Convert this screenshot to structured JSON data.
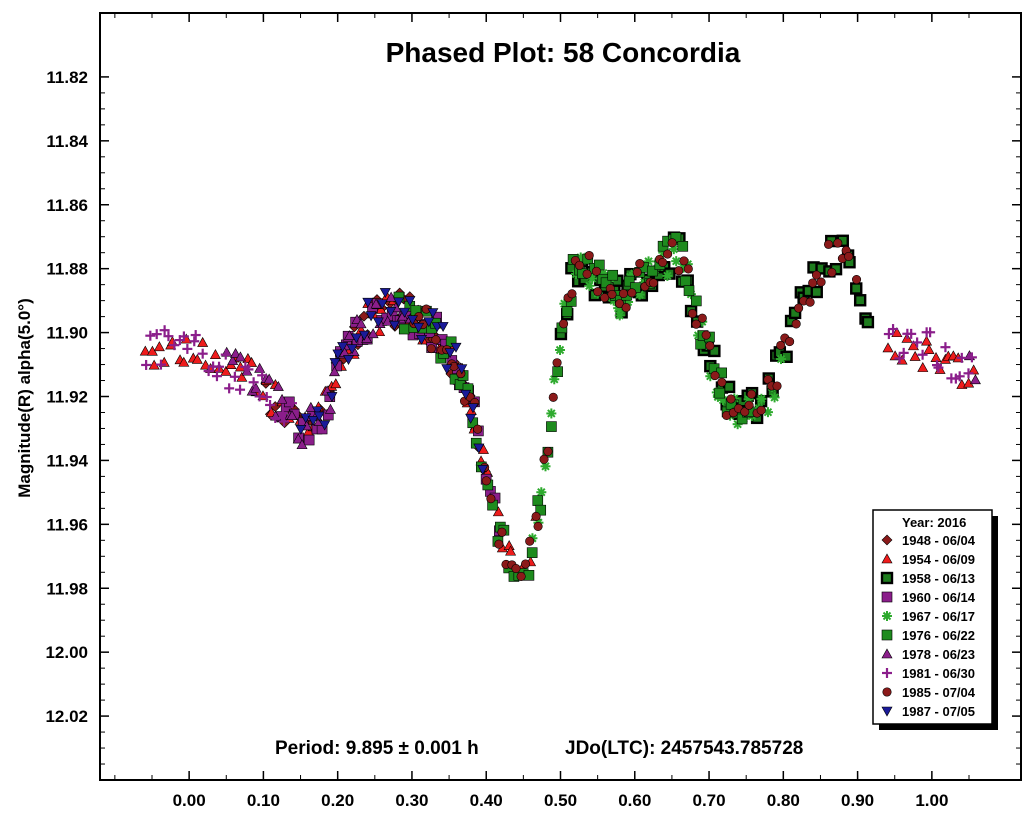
{
  "chart_data": {
    "type": "scatter",
    "title": "Phased Plot: 58 Concordia",
    "xlabel": "",
    "ylabel": "Magnitude(R) alpha(5.0°)",
    "xlim": [
      -0.12,
      1.12
    ],
    "ylim": [
      11.8,
      12.04
    ],
    "y_inverted": true,
    "x_ticks": [
      "0.00",
      "0.10",
      "0.20",
      "0.30",
      "0.40",
      "0.50",
      "0.60",
      "0.70",
      "0.80",
      "0.90",
      "1.00"
    ],
    "y_ticks": [
      "11.82",
      "11.84",
      "11.86",
      "11.88",
      "11.90",
      "11.92",
      "11.94",
      "11.96",
      "11.98",
      "12.00",
      "12.02"
    ],
    "grid": false,
    "legend_position": "bottom-right",
    "legend_title": "Year: 2016",
    "period_text": "Period: 9.895 ± 0.001 h",
    "epoch_text": "JDo(LTC): 2457543.785728",
    "lightcurve": [
      [
        0.0,
        11.905
      ],
      [
        0.05,
        11.912
      ],
      [
        0.08,
        11.913
      ],
      [
        0.12,
        11.922
      ],
      [
        0.15,
        11.93
      ],
      [
        0.18,
        11.925
      ],
      [
        0.2,
        11.912
      ],
      [
        0.23,
        11.898
      ],
      [
        0.27,
        11.892
      ],
      [
        0.3,
        11.895
      ],
      [
        0.33,
        11.9
      ],
      [
        0.36,
        11.91
      ],
      [
        0.38,
        11.922
      ],
      [
        0.4,
        11.945
      ],
      [
        0.42,
        11.965
      ],
      [
        0.44,
        11.975
      ],
      [
        0.46,
        11.97
      ],
      [
        0.48,
        11.94
      ],
      [
        0.5,
        11.9
      ],
      [
        0.52,
        11.88
      ],
      [
        0.55,
        11.883
      ],
      [
        0.58,
        11.89
      ],
      [
        0.62,
        11.88
      ],
      [
        0.66,
        11.875
      ],
      [
        0.69,
        11.9
      ],
      [
        0.72,
        11.92
      ],
      [
        0.75,
        11.925
      ],
      [
        0.78,
        11.92
      ],
      [
        0.81,
        11.9
      ],
      [
        0.85,
        11.88
      ],
      [
        0.88,
        11.873
      ],
      [
        0.91,
        11.895
      ],
      [
        0.95,
        11.905
      ],
      [
        1.0,
        11.905
      ],
      [
        1.05,
        11.912
      ]
    ],
    "series": [
      {
        "name": "1948 - 06/04",
        "marker": "diamond",
        "color": "#8b1a1a",
        "range": [
          0.1,
          0.4
        ]
      },
      {
        "name": "1954 - 06/09",
        "marker": "triangle-up",
        "color": "#ee1c1c",
        "range": [
          -0.06,
          0.47
        ]
      },
      {
        "name": "1958 - 06/13",
        "marker": "square-outline",
        "color": "#1e7d1e",
        "range": [
          0.5,
          0.92
        ]
      },
      {
        "name": "1960 - 06/14",
        "marker": "square",
        "color": "#8b1e8b",
        "range": [
          0.12,
          0.42
        ]
      },
      {
        "name": "1967 - 06/17",
        "marker": "asterisk",
        "color": "#2eaa2e",
        "range": [
          0.46,
          0.8
        ]
      },
      {
        "name": "1976 - 06/22",
        "marker": "square",
        "color": "#1e8b1e",
        "range": [
          0.28,
          0.76
        ]
      },
      {
        "name": "1978 - 06/23",
        "marker": "triangle-up",
        "color": "#8b1e8b",
        "range": [
          0.05,
          0.3
        ]
      },
      {
        "name": "1981 - 06/30",
        "marker": "plus",
        "color": "#8b1e8b",
        "range": [
          -0.06,
          0.14
        ]
      },
      {
        "name": "1985 - 07/04",
        "marker": "circle",
        "color": "#8b1a1a",
        "range": [
          0.3,
          0.9
        ]
      },
      {
        "name": "1987 - 07/05",
        "marker": "triangle-down",
        "color": "#1a1a99",
        "range": [
          0.15,
          0.4
        ]
      }
    ]
  }
}
